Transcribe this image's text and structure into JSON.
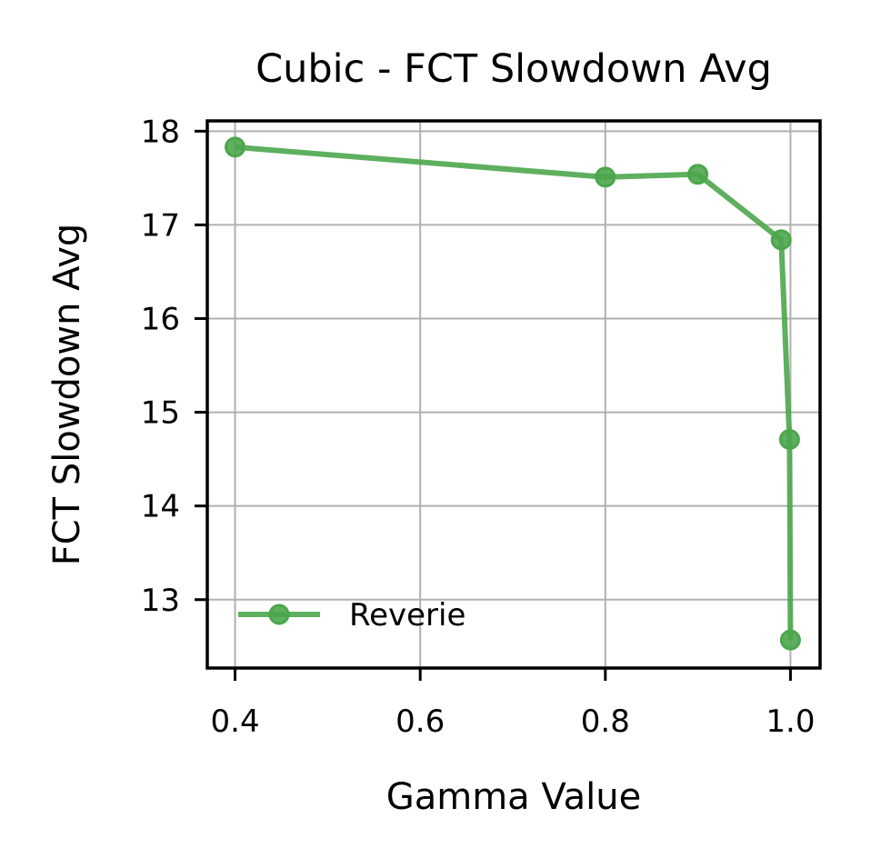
{
  "chart_data": {
    "type": "line",
    "title": "Cubic - FCT Slowdown Avg",
    "xlabel": "Gamma Value",
    "ylabel": "FCT Slowdown Avg",
    "xlim": [
      0.37,
      1.032
    ],
    "ylim": [
      12.27,
      18.11
    ],
    "x_ticks": [
      0.4,
      0.6,
      0.8,
      1.0
    ],
    "x_tick_labels": [
      "0.4",
      "0.6",
      "0.8",
      "1.0"
    ],
    "y_ticks": [
      13,
      14,
      15,
      16,
      17,
      18
    ],
    "y_tick_labels": [
      "13",
      "14",
      "15",
      "16",
      "17",
      "18"
    ],
    "grid": true,
    "legend_position": "lower-left",
    "series": [
      {
        "name": "Reverie",
        "color": "#4ca64c",
        "marker": "circle",
        "x": [
          0.4,
          0.8,
          0.9,
          0.99,
          0.999,
          1.0
        ],
        "y": [
          17.83,
          17.51,
          17.54,
          16.84,
          14.71,
          12.57
        ]
      }
    ]
  }
}
